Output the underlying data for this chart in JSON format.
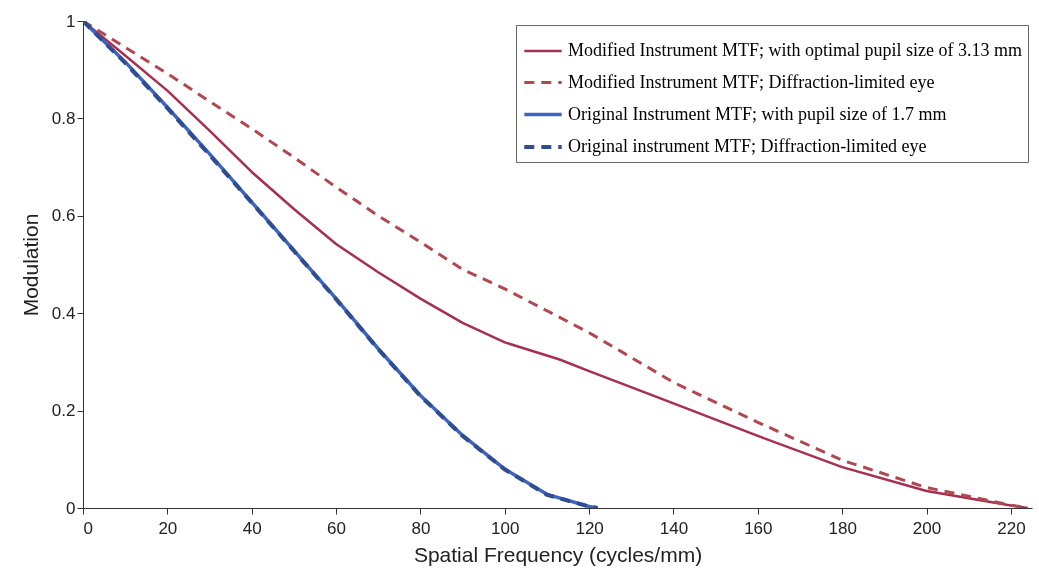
{
  "chart_data": {
    "type": "line",
    "xlabel": "Spatial Frequency (cycles/mm)",
    "ylabel": "Modulation",
    "xlim": [
      0,
      225
    ],
    "ylim": [
      0,
      1
    ],
    "xticks": [
      0,
      20,
      40,
      60,
      80,
      100,
      120,
      140,
      160,
      180,
      200,
      220
    ],
    "yticks": [
      0,
      0.2,
      0.4,
      0.6,
      0.8,
      1
    ],
    "legend": "top right",
    "grid": false,
    "marker": "none",
    "series": [
      {
        "name": "Modified Instrument MTF; with optimal pupil size of 3.13 mm",
        "color": "#a6304f",
        "line_style": "solid",
        "x": [
          0,
          10,
          20,
          30,
          40,
          50,
          60,
          70,
          80,
          90,
          100,
          113,
          120,
          140,
          160,
          180,
          200,
          220,
          224
        ],
        "values": [
          1,
          0.929,
          0.857,
          0.775,
          0.69,
          0.614,
          0.542,
          0.484,
          0.43,
          0.38,
          0.34,
          0.305,
          0.281,
          0.215,
          0.148,
          0.084,
          0.035,
          0.005,
          0
        ]
      },
      {
        "name": "Modified Instrument MTF; Diffraction-limited eye",
        "color": "#b2474f",
        "line_style": "dashed",
        "x": [
          0,
          10,
          20,
          30,
          40,
          50,
          60,
          70,
          80,
          90,
          100,
          110,
          120,
          140,
          160,
          180,
          200,
          220,
          224
        ],
        "values": [
          1,
          0.946,
          0.892,
          0.835,
          0.779,
          0.72,
          0.659,
          0.6,
          0.546,
          0.49,
          0.45,
          0.405,
          0.36,
          0.258,
          0.176,
          0.098,
          0.042,
          0.006,
          0
        ]
      },
      {
        "name": "Original Instrument MTF; with pupil size of 1.7 mm",
        "color": "#3d65c0",
        "line_style": "solid",
        "x": [
          0,
          10,
          20,
          30,
          40,
          50,
          60,
          70,
          80,
          90,
          100,
          110,
          120,
          122
        ],
        "values": [
          1,
          0.916,
          0.823,
          0.727,
          0.628,
          0.529,
          0.43,
          0.327,
          0.231,
          0.149,
          0.08,
          0.028,
          0.003,
          0
        ]
      },
      {
        "name": "Original instrument MTF; Diffraction-limited eye",
        "color": "#2f4d8f",
        "line_style": "dashed",
        "x": [
          0,
          10,
          20,
          30,
          40,
          50,
          60,
          70,
          80,
          90,
          100,
          110,
          120,
          122
        ],
        "values": [
          1,
          0.914,
          0.821,
          0.725,
          0.627,
          0.528,
          0.429,
          0.326,
          0.23,
          0.148,
          0.079,
          0.027,
          0.003,
          0
        ]
      }
    ]
  }
}
